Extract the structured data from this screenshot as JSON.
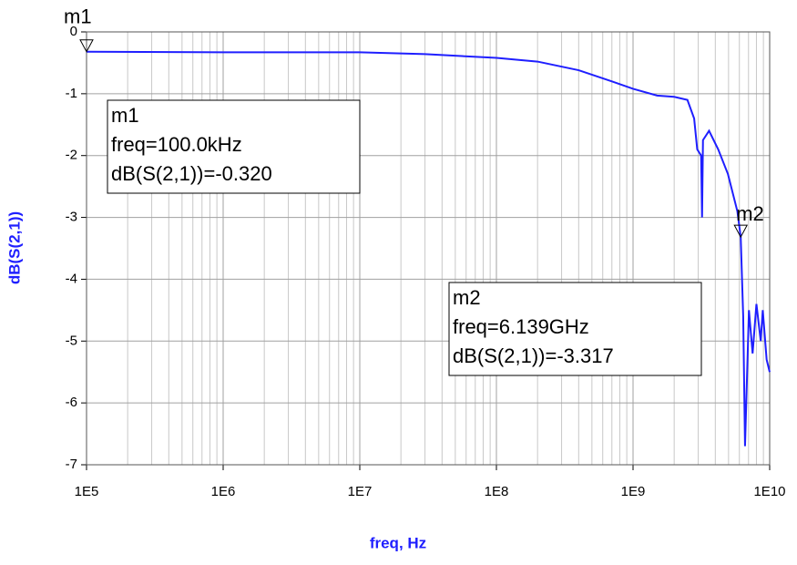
{
  "chart_data": {
    "type": "line",
    "x_label": "freq, Hz",
    "y_label": "dB(S(2,1))",
    "x": [
      100000,
      1000000,
      10000000,
      30000000,
      100000000,
      200000000,
      400000000,
      700000000,
      1000000000,
      1500000000,
      2000000000,
      2500000000,
      2800000000,
      2950000000,
      3150000000,
      3200000000,
      3250000000,
      3600000000,
      4200000000,
      4950000000,
      5800000000,
      6139000000,
      6400000000,
      6600000000,
      7050000000,
      7500000000,
      8000000000,
      8600000000,
      8900000000,
      9500000000,
      10000000000
    ],
    "series": [
      {
        "color": "#1f1fff",
        "values": [
          -0.32,
          -0.33,
          -0.33,
          -0.36,
          -0.42,
          -0.48,
          -0.62,
          -0.8,
          -0.92,
          -1.03,
          -1.05,
          -1.1,
          -1.4,
          -1.9,
          -2.0,
          -3.0,
          -1.75,
          -1.6,
          -1.9,
          -2.3,
          -2.9,
          -3.317,
          -4.6,
          -6.7,
          -4.5,
          -5.2,
          -4.4,
          -5.0,
          -4.5,
          -5.3,
          -5.5
        ]
      }
    ],
    "log_x": true,
    "xlim": [
      100000,
      10000000000
    ],
    "xticks": [
      {
        "value": 100000,
        "label": "1E5"
      },
      {
        "value": 1000000,
        "label": "1E6"
      },
      {
        "value": 10000000,
        "label": "1E7"
      },
      {
        "value": 100000000,
        "label": "1E8"
      },
      {
        "value": 1000000000,
        "label": "1E9"
      },
      {
        "value": 10000000000,
        "label": "1E10"
      }
    ],
    "xminorticks": [
      200000,
      300000,
      400000,
      500000,
      600000,
      700000,
      800000,
      900000,
      2000000,
      3000000,
      4000000,
      5000000,
      6000000,
      7000000,
      8000000,
      9000000,
      20000000,
      30000000,
      40000000,
      50000000,
      60000000,
      70000000,
      80000000,
      90000000,
      200000000,
      300000000,
      400000000,
      500000000,
      600000000,
      700000000,
      800000000,
      900000000,
      2000000000,
      3000000000,
      4000000000,
      5000000000,
      6000000000,
      7000000000,
      8000000000,
      9000000000
    ],
    "ylim": [
      -7,
      0
    ],
    "yticks": [
      0,
      -1,
      -2,
      -3,
      -4,
      -5,
      -6,
      -7
    ],
    "grid": true,
    "markers": [
      {
        "name": "m1",
        "x": 100000,
        "y": -0.32,
        "lines": [
          "freq=100.0kHz",
          "dB(S(2,1))=-0.320"
        ]
      },
      {
        "name": "m2",
        "x": 6139000000,
        "y": -3.317,
        "lines": [
          "freq=6.139GHz",
          "dB(S(2,1))=-3.317"
        ]
      }
    ]
  }
}
